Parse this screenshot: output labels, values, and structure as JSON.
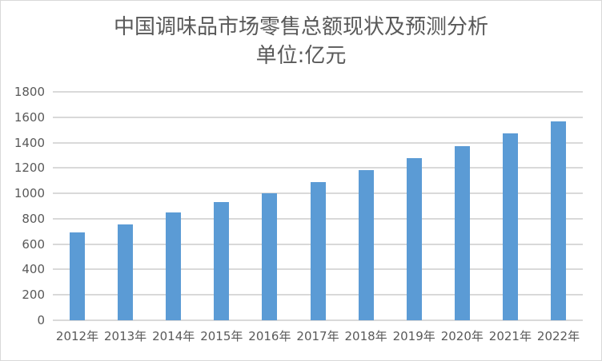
{
  "chart_data": {
    "type": "bar",
    "title": "中国调味品市场零售总额现状及预测分析",
    "subtitle": "单位:亿元",
    "xlabel": "",
    "ylabel": "",
    "categories": [
      "2012年",
      "2013年",
      "2014年",
      "2015年",
      "2016年",
      "2017年",
      "2018年",
      "2019年",
      "2020年",
      "2021年",
      "2022年"
    ],
    "values": [
      692,
      755,
      850,
      931,
      1000,
      1089,
      1183,
      1278,
      1372,
      1473,
      1567
    ],
    "ylim": [
      0,
      1800
    ],
    "yticks": [
      "0",
      "200",
      "400",
      "600",
      "800",
      "1000",
      "1200",
      "1400",
      "1600",
      "1800"
    ],
    "grid": true,
    "legend": "none",
    "bar_color": "#5b9bd5"
  }
}
